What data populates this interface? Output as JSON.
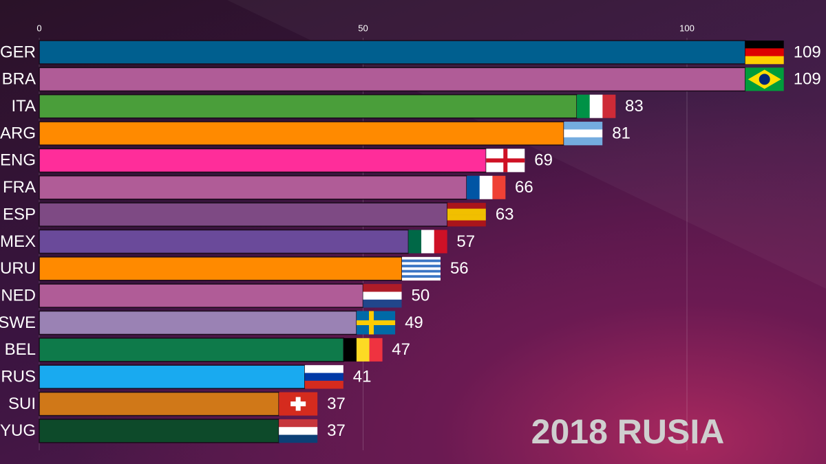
{
  "chart_data": {
    "type": "bar",
    "orientation": "horizontal",
    "title": "2018 RUSIA",
    "categories": [
      "GER",
      "BRA",
      "ITA",
      "ARG",
      "ENG",
      "FRA",
      "ESP",
      "MEX",
      "URU",
      "NED",
      "SWE",
      "BEL",
      "RUS",
      "SUI",
      "YUG"
    ],
    "values": [
      109,
      109,
      83,
      81,
      69,
      66,
      63,
      57,
      56,
      50,
      49,
      47,
      41,
      37,
      37
    ],
    "colors": [
      "#005f8f",
      "#b05c97",
      "#4a9e3a",
      "#ff8a00",
      "#ff2d9a",
      "#b05c97",
      "#7e4a84",
      "#6a4a9a",
      "#ff8a00",
      "#b05c97",
      "#9a82b4",
      "#0e7a4a",
      "#19aaf0",
      "#d07818",
      "#0d4a2a"
    ],
    "xlim": [
      0,
      121
    ],
    "xticks": [
      0,
      50,
      100
    ],
    "grid": true
  }
}
